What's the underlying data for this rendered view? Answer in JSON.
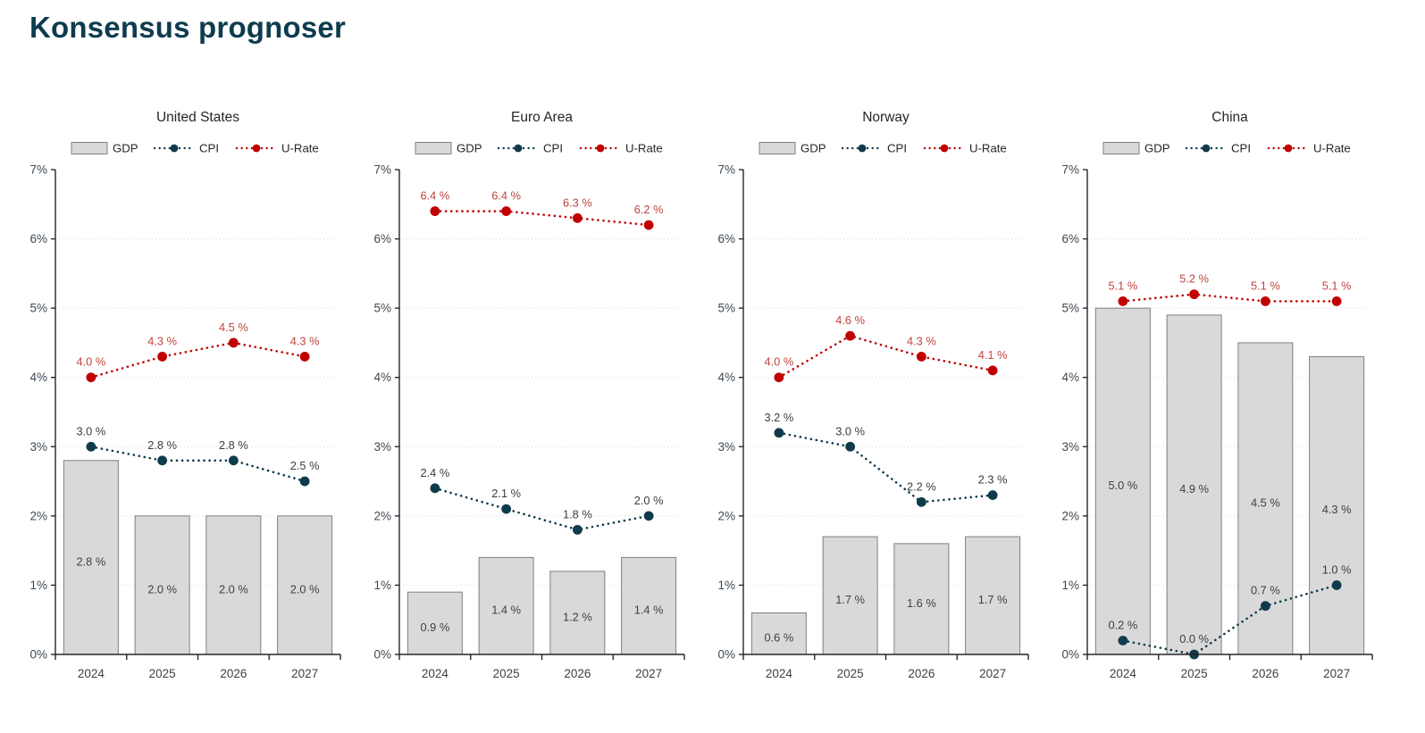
{
  "page_title": "Konsensus prognoser",
  "colors": {
    "title": "#0e3c4e",
    "panel_title": "#262626",
    "legend_text": "#262626",
    "gdp_fill": "#d9d9d9",
    "gdp_stroke": "#7f7f7f",
    "cpi": "#0f3b4c",
    "urate": "#c00000",
    "urate_label": "#c0443c",
    "cpi_label": "#3d3d3d",
    "bar_label": "#404040",
    "axis": "#262626",
    "grid": "#d9d9d9",
    "tick_label": "#3d4852"
  },
  "legend": {
    "gdp": "GDP",
    "cpi": "CPI",
    "urate": "U-Rate"
  },
  "chart_data": [
    {
      "type": "bar",
      "title": "United States",
      "categories": [
        "2024",
        "2025",
        "2026",
        "2027"
      ],
      "ylim": [
        0,
        7
      ],
      "ytick_step": 1,
      "ytick_suffix": "%",
      "grid": "dotted-horizontal",
      "legend_position": "top",
      "series": [
        {
          "name": "GDP",
          "kind": "bar",
          "values": [
            2.8,
            2.0,
            2.0,
            2.0
          ]
        },
        {
          "name": "CPI",
          "kind": "line",
          "values": [
            3.0,
            2.8,
            2.8,
            2.5
          ]
        },
        {
          "name": "U-Rate",
          "kind": "line",
          "values": [
            4.0,
            4.3,
            4.5,
            4.3
          ]
        }
      ],
      "label_suffix": " %"
    },
    {
      "type": "bar",
      "title": "Euro Area",
      "categories": [
        "2024",
        "2025",
        "2026",
        "2027"
      ],
      "ylim": [
        0,
        7
      ],
      "ytick_step": 1,
      "ytick_suffix": "%",
      "grid": "dotted-horizontal",
      "legend_position": "top",
      "series": [
        {
          "name": "GDP",
          "kind": "bar",
          "values": [
            0.9,
            1.4,
            1.2,
            1.4
          ]
        },
        {
          "name": "CPI",
          "kind": "line",
          "values": [
            2.4,
            2.1,
            1.8,
            2.0
          ]
        },
        {
          "name": "U-Rate",
          "kind": "line",
          "values": [
            6.4,
            6.4,
            6.3,
            6.2
          ]
        }
      ],
      "label_suffix": " %"
    },
    {
      "type": "bar",
      "title": "Norway",
      "categories": [
        "2024",
        "2025",
        "2026",
        "2027"
      ],
      "ylim": [
        0,
        7
      ],
      "ytick_step": 1,
      "ytick_suffix": "%",
      "grid": "dotted-horizontal",
      "legend_position": "top",
      "series": [
        {
          "name": "GDP",
          "kind": "bar",
          "values": [
            0.6,
            1.7,
            1.6,
            1.7
          ]
        },
        {
          "name": "CPI",
          "kind": "line",
          "values": [
            3.2,
            3.0,
            2.2,
            2.3
          ]
        },
        {
          "name": "U-Rate",
          "kind": "line",
          "values": [
            4.0,
            4.6,
            4.3,
            4.1
          ]
        }
      ],
      "label_suffix": " %"
    },
    {
      "type": "bar",
      "title": "China",
      "categories": [
        "2024",
        "2025",
        "2026",
        "2027"
      ],
      "ylim": [
        0,
        7
      ],
      "ytick_step": 1,
      "ytick_suffix": "%",
      "grid": "dotted-horizontal",
      "legend_position": "top",
      "series": [
        {
          "name": "GDP",
          "kind": "bar",
          "values": [
            5.0,
            4.9,
            4.5,
            4.3
          ]
        },
        {
          "name": "CPI",
          "kind": "line",
          "values": [
            0.2,
            0.0,
            0.7,
            1.0
          ]
        },
        {
          "name": "U-Rate",
          "kind": "line",
          "values": [
            5.1,
            5.2,
            5.1,
            5.1
          ]
        }
      ],
      "label_suffix": " %"
    }
  ]
}
